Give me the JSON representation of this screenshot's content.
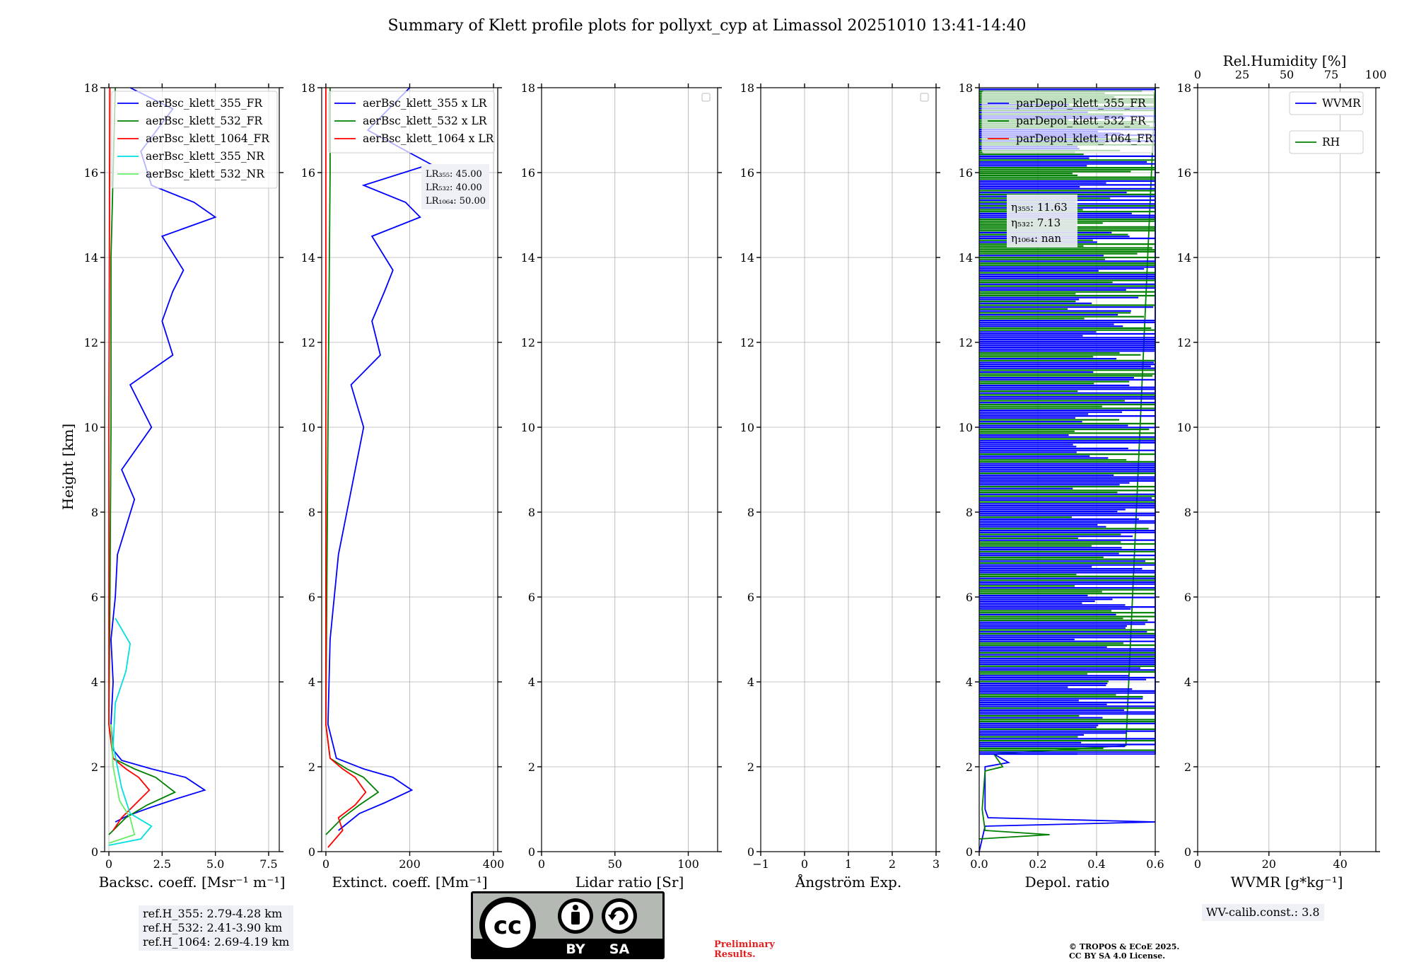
{
  "title": "Summary of Klett profile plots for pollyxt_cyp at Limassol 20251010 13:41-14:40",
  "ylabel": "Height [km]",
  "colors": {
    "c355": "#0000ff",
    "c532": "#008000",
    "c1064": "#ff0000",
    "c355nr": "#00e0e0",
    "c532nr": "#66ee66"
  },
  "chart_data": [
    {
      "id": "bsc",
      "type": "line",
      "xlabel": "Backsc. coeff. [Msr⁻¹ m⁻¹]",
      "xlim": [
        -0.2,
        8.0
      ],
      "ylim": [
        0,
        18
      ],
      "xticks": [
        0,
        2.5,
        5.0,
        7.5
      ],
      "xtick_labels": [
        "0",
        "2.5",
        "5.0",
        "7.5"
      ],
      "yticks": [
        0,
        2,
        4,
        6,
        8,
        10,
        12,
        14,
        16,
        18
      ],
      "legend": {
        "position": "top-right",
        "entries": [
          "aerBsc_klett_355_FR",
          "aerBsc_klett_532_FR",
          "aerBsc_klett_1064_FR",
          "aerBsc_klett_355_NR",
          "aerBsc_klett_532_NR"
        ]
      },
      "series": [
        {
          "name": "aerBsc_klett_355_FR",
          "color": "#0000ff",
          "points": [
            [
              0.3,
              0.7
            ],
            [
              0.9,
              0.85
            ],
            [
              2.0,
              1.05
            ],
            [
              3.2,
              1.25
            ],
            [
              4.5,
              1.45
            ],
            [
              3.6,
              1.75
            ],
            [
              2.0,
              1.95
            ],
            [
              0.6,
              2.15
            ],
            [
              0.2,
              2.4
            ],
            [
              0.1,
              3.0
            ],
            [
              0.2,
              4.0
            ],
            [
              0.1,
              5.0
            ],
            [
              0.3,
              6.0
            ],
            [
              0.4,
              7.0
            ],
            [
              1.2,
              8.3
            ],
            [
              0.6,
              9.0
            ],
            [
              2.0,
              10.0
            ],
            [
              1.0,
              11.0
            ],
            [
              3.0,
              11.7
            ],
            [
              2.5,
              12.5
            ],
            [
              3.0,
              13.2
            ],
            [
              3.5,
              13.7
            ],
            [
              2.5,
              14.5
            ],
            [
              5.0,
              14.95
            ],
            [
              4.0,
              15.3
            ],
            [
              2.0,
              15.7
            ],
            [
              1.5,
              16.5
            ],
            [
              3.0,
              17.5
            ],
            [
              1.0,
              18.0
            ]
          ]
        },
        {
          "name": "aerBsc_klett_532_FR",
          "color": "#008000",
          "points": [
            [
              0.0,
              0.4
            ],
            [
              0.8,
              0.8
            ],
            [
              1.8,
              1.1
            ],
            [
              3.1,
              1.4
            ],
            [
              2.2,
              1.75
            ],
            [
              1.2,
              1.95
            ],
            [
              0.2,
              2.2
            ],
            [
              0.0,
              3.0
            ],
            [
              0.05,
              6.0
            ],
            [
              0.1,
              10.0
            ],
            [
              0.1,
              14.0
            ],
            [
              0.2,
              16.0
            ],
            [
              0.3,
              18.0
            ]
          ]
        },
        {
          "name": "aerBsc_klett_1064_FR",
          "color": "#ff0000",
          "points": [
            [
              0.2,
              0.5
            ],
            [
              0.6,
              0.8
            ],
            [
              1.2,
              1.1
            ],
            [
              1.9,
              1.45
            ],
            [
              1.4,
              1.75
            ],
            [
              0.8,
              1.95
            ],
            [
              0.2,
              2.2
            ],
            [
              0.0,
              3.0
            ],
            [
              0.0,
              10.0
            ],
            [
              0.05,
              18.0
            ]
          ]
        },
        {
          "name": "aerBsc_klett_355_NR",
          "color": "#00e0e0",
          "points": [
            [
              0.0,
              0.15
            ],
            [
              1.5,
              0.3
            ],
            [
              2.0,
              0.6
            ],
            [
              1.0,
              0.9
            ],
            [
              0.6,
              1.5
            ],
            [
              0.2,
              2.5
            ],
            [
              0.3,
              3.5
            ],
            [
              0.8,
              4.25
            ],
            [
              1.0,
              4.9
            ],
            [
              0.3,
              5.5
            ]
          ]
        },
        {
          "name": "aerBsc_klett_532_NR",
          "color": "#66ee66",
          "points": [
            [
              0.0,
              0.2
            ],
            [
              1.2,
              0.4
            ],
            [
              1.0,
              0.8
            ],
            [
              0.5,
              1.2
            ],
            [
              0.2,
              2.0
            ],
            [
              0.1,
              3.0
            ]
          ]
        }
      ],
      "annotation": [
        "ref.H_355: 2.79-4.28 km",
        "ref.H_532: 2.41-3.90 km",
        "ref.H_1064: 2.69-4.19 km"
      ]
    },
    {
      "id": "ext",
      "type": "line",
      "xlabel": "Extinct. coeff. [Mm⁻¹]",
      "xlim": [
        -10,
        410
      ],
      "ylim": [
        0,
        18
      ],
      "xticks": [
        0,
        200,
        400
      ],
      "xtick_labels": [
        "0",
        "200",
        "400"
      ],
      "yticks": [
        0,
        2,
        4,
        6,
        8,
        10,
        12,
        14,
        16,
        18
      ],
      "legend": {
        "position": "top-right",
        "entries": [
          "aerBsc_klett_355 x LR",
          "aerBsc_klett_532 x LR",
          "aerBsc_klett_1064 x LR"
        ]
      },
      "lidar_ratios": [
        "LR₃₅₅: 45.00",
        "LR₅₃₂: 40.00",
        "LR₁₀₆₄: 50.00"
      ],
      "series": [
        {
          "name": "aerBsc_klett_355 x LR",
          "color": "#0000ff",
          "points": [
            [
              30,
              0.5
            ],
            [
              80,
              0.9
            ],
            [
              140,
              1.15
            ],
            [
              205,
              1.45
            ],
            [
              160,
              1.75
            ],
            [
              90,
              1.95
            ],
            [
              25,
              2.2
            ],
            [
              5,
              3.0
            ],
            [
              10,
              5.0
            ],
            [
              30,
              7.0
            ],
            [
              50,
              8.0
            ],
            [
              90,
              10.0
            ],
            [
              60,
              11.0
            ],
            [
              130,
              11.7
            ],
            [
              110,
              12.5
            ],
            [
              140,
              13.2
            ],
            [
              160,
              13.7
            ],
            [
              110,
              14.5
            ],
            [
              225,
              14.95
            ],
            [
              190,
              15.3
            ],
            [
              90,
              15.7
            ],
            [
              250,
              16.2
            ],
            [
              100,
              17.0
            ],
            [
              200,
              18.0
            ]
          ]
        },
        {
          "name": "aerBsc_klett_532 x LR",
          "color": "#008000",
          "points": [
            [
              0,
              0.4
            ],
            [
              40,
              0.8
            ],
            [
              80,
              1.1
            ],
            [
              125,
              1.4
            ],
            [
              90,
              1.75
            ],
            [
              50,
              1.95
            ],
            [
              10,
              2.2
            ],
            [
              0,
              3.0
            ],
            [
              5,
              10.0
            ],
            [
              10,
              16.0
            ],
            [
              10,
              18.0
            ]
          ]
        },
        {
          "name": "aerBsc_klett_1064 x LR",
          "color": "#ff0000",
          "points": [
            [
              5,
              0.1
            ],
            [
              40,
              0.5
            ],
            [
              30,
              0.8
            ],
            [
              70,
              1.1
            ],
            [
              95,
              1.4
            ],
            [
              70,
              1.75
            ],
            [
              40,
              1.95
            ],
            [
              10,
              2.2
            ],
            [
              0,
              3.0
            ],
            [
              0,
              18.0
            ]
          ]
        }
      ]
    },
    {
      "id": "lr",
      "type": "line",
      "xlabel": "Lidar ratio [Sr]",
      "xlim": [
        0,
        120
      ],
      "ylim": [
        0,
        18
      ],
      "xticks": [
        0,
        50,
        100
      ],
      "xtick_labels": [
        "0",
        "50",
        "100"
      ],
      "yticks": [
        0,
        2,
        4,
        6,
        8,
        10,
        12,
        14,
        16,
        18
      ],
      "legend": {
        "position": "top-right",
        "entries": []
      },
      "series": []
    },
    {
      "id": "ae",
      "type": "line",
      "xlabel": "Ångström Exp.",
      "xlim": [
        -1,
        3
      ],
      "ylim": [
        0,
        18
      ],
      "xticks": [
        -1,
        0,
        1,
        2,
        3
      ],
      "xtick_labels": [
        "−1",
        "0",
        "1",
        "2",
        "3"
      ],
      "yticks": [
        0,
        2,
        4,
        6,
        8,
        10,
        12,
        14,
        16,
        18
      ],
      "legend": {
        "position": "top-right",
        "entries": []
      },
      "series": []
    },
    {
      "id": "depol",
      "type": "line",
      "xlabel": "Depol. ratio",
      "xlim": [
        0,
        0.6
      ],
      "ylim": [
        0,
        18
      ],
      "xticks": [
        0.0,
        0.2,
        0.4,
        0.6
      ],
      "xtick_labels": [
        "0.0",
        "0.2",
        "0.4",
        "0.6"
      ],
      "yticks": [
        0,
        2,
        4,
        6,
        8,
        10,
        12,
        14,
        16,
        18
      ],
      "legend": {
        "position": "top-left",
        "entries": [
          "parDepol_klett_355_FR",
          "parDepol_klett_532_FR",
          "parDepol_klett_1064_FR"
        ]
      },
      "eta": [
        "η₃₅₅: 11.63",
        "η₅₃₂: 7.13",
        "η₁₀₆₄: nan"
      ],
      "series": [
        {
          "name": "parDepol_klett_355_FR",
          "color": "#0000ff",
          "points": [
            [
              0.0,
              0.0
            ],
            [
              0.02,
              0.6
            ],
            [
              0.6,
              0.7
            ],
            [
              0.03,
              0.8
            ],
            [
              0.02,
              1.0
            ],
            [
              0.02,
              2.0
            ],
            [
              0.1,
              2.1
            ],
            [
              0.05,
              2.3
            ],
            [
              0.6,
              2.3
            ],
            [
              0.6,
              18.0
            ]
          ]
        },
        {
          "name": "parDepol_klett_532_FR",
          "color": "#008000",
          "points": [
            [
              0.0,
              0.3
            ],
            [
              0.24,
              0.4
            ],
            [
              0.02,
              0.5
            ],
            [
              0.01,
              1.0
            ],
            [
              0.02,
              1.9
            ],
            [
              0.08,
              2.0
            ],
            [
              0.05,
              2.3
            ],
            [
              0.5,
              2.5
            ],
            [
              0.6,
              18.0
            ]
          ]
        },
        {
          "name": "parDepol_klett_1064_FR",
          "color": "#ff0000",
          "points": []
        }
      ]
    },
    {
      "id": "wv",
      "type": "line",
      "xlabel": "WVMR [g*kg⁻¹]",
      "xlim": [
        0,
        50
      ],
      "ylim": [
        0,
        18
      ],
      "xticks": [
        0,
        20,
        40
      ],
      "xtick_labels": [
        "0",
        "20",
        "40"
      ],
      "yticks": [
        0,
        2,
        4,
        6,
        8,
        10,
        12,
        14,
        16,
        18
      ],
      "top_xlabel": "Rel.Humidity [%]",
      "top_xticks": [
        0,
        25,
        50,
        75,
        100
      ],
      "top_xtick_labels": [
        "0",
        "25",
        "50",
        "75",
        "100"
      ],
      "legend": {
        "position": "top-right",
        "entries": [
          "WVMR",
          "RH"
        ]
      },
      "calib": "WV-calib.const.: 3.8",
      "series": []
    }
  ],
  "footer": {
    "cc_badge": {
      "left_text": "BY",
      "right_text": "SA",
      "cc_text": "cc"
    },
    "preliminary": [
      "Preliminary",
      "Results."
    ],
    "copyright": [
      "© TROPOS & ECoE 2025.",
      "CC BY SA 4.0 License."
    ]
  }
}
